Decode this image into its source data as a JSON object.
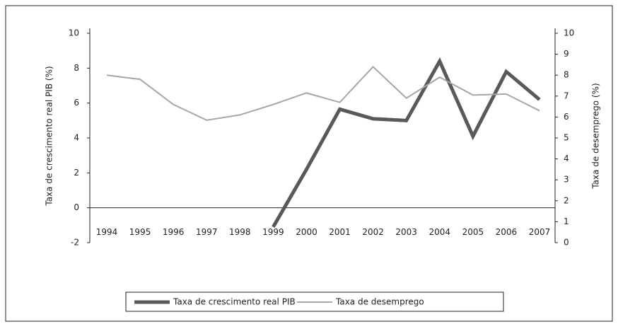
{
  "chart_data": {
    "type": "line",
    "y_label": "Taxa de crescimento real PIB (%)",
    "y2_label": "Taxa de desemprego (%)",
    "categories": [
      "1994",
      "1995",
      "1996",
      "1997",
      "1998",
      "1999",
      "2000",
      "2001",
      "2002",
      "2003",
      "2004",
      "2005",
      "2006",
      "2007"
    ],
    "series": [
      {
        "name": "Taxa de crescimento real PIB",
        "color": "#595959",
        "width": 5,
        "values": [
          null,
          null,
          null,
          null,
          null,
          -1.1,
          2.2,
          5.65,
          5.1,
          5.0,
          8.4,
          4.1,
          7.8,
          6.2
        ]
      },
      {
        "name": "Taxa de desemprego",
        "color": "#a6a6a6",
        "width": 2,
        "axis": "y2",
        "values": [
          8.0,
          7.8,
          6.6,
          5.85,
          6.1,
          6.6,
          7.15,
          6.7,
          8.4,
          6.9,
          7.9,
          7.05,
          7.1,
          6.3
        ]
      }
    ],
    "ylim": [
      -2,
      10
    ],
    "yticks": [
      -2,
      0,
      2,
      4,
      6,
      8,
      10
    ],
    "y2lim": [
      0,
      10
    ],
    "y2ticks": [
      0,
      1,
      2,
      3,
      4,
      5,
      6,
      7,
      8,
      9,
      10
    ],
    "legend": "bottom"
  }
}
